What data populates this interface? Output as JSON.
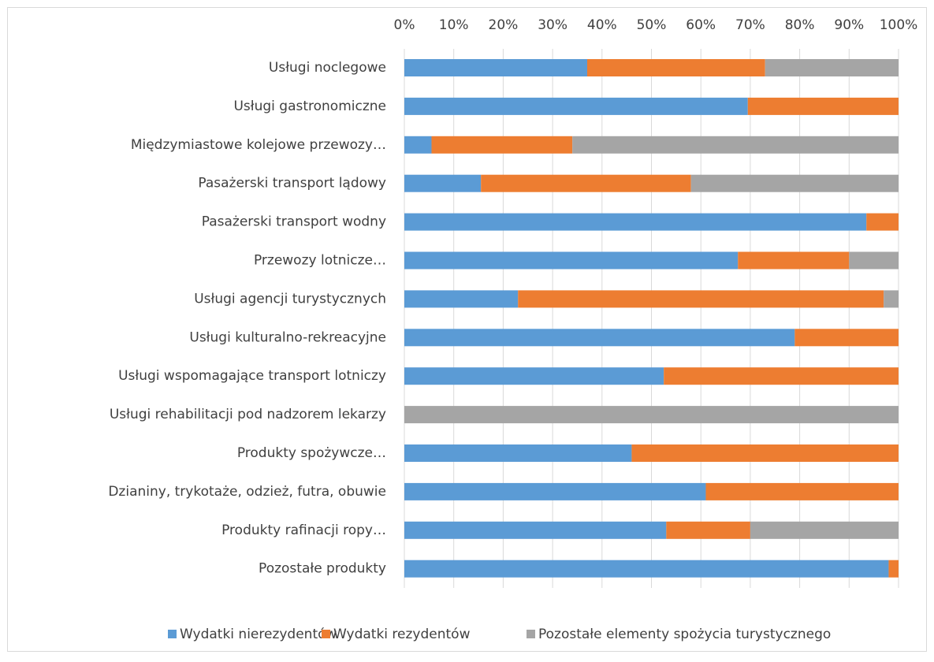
{
  "chart_data": {
    "type": "stacked_barh",
    "categories": [
      "Usługi noclegowe",
      "Usługi gastronomiczne",
      "Międzymiastowe kolejowe przewozy…",
      "Pasażerski transport lądowy",
      "Pasażerski transport wodny",
      "Przewozy lotnicze…",
      "Usługi agencji turystycznych",
      "Usługi kulturalno-rekreacyjne",
      "Usługi wspomagające transport lotniczy",
      "Usługi rehabilitacji pod nadzorem lekarzy",
      "Produkty spożywcze…",
      "Dzianiny, trykotaże, odzież, futra, obuwie",
      "Produkty rafinacji ropy…",
      "Pozostałe produkty"
    ],
    "series": [
      {
        "name": "Wydatki nierezydentów",
        "color": "#5b9bd5",
        "values": [
          37,
          69.5,
          5.5,
          15.5,
          93.5,
          67.5,
          23,
          79,
          52.5,
          0,
          46,
          61,
          53,
          98
        ]
      },
      {
        "name": "Wydatki rezydentów",
        "color": "#ed7d31",
        "values": [
          36,
          30.5,
          28.5,
          42.5,
          6.5,
          22.5,
          74,
          21,
          47.5,
          0,
          54,
          39,
          17,
          2
        ]
      },
      {
        "name": "Pozostałe elementy spożycia turystycznego",
        "color": "#a5a5a5",
        "values": [
          27,
          0,
          66,
          42,
          0,
          10,
          3,
          0,
          0,
          100,
          0,
          0,
          30,
          0
        ]
      }
    ],
    "xlim": [
      0,
      100
    ],
    "xticks": [
      {
        "value": 0,
        "label": "0%"
      },
      {
        "value": 10,
        "label": "10%"
      },
      {
        "value": 20,
        "label": "20%"
      },
      {
        "value": 30,
        "label": "30%"
      },
      {
        "value": 40,
        "label": "40%"
      },
      {
        "value": 50,
        "label": "50%"
      },
      {
        "value": 60,
        "label": "60%"
      },
      {
        "value": 70,
        "label": "70%"
      },
      {
        "value": 80,
        "label": "80%"
      },
      {
        "value": 90,
        "label": "90%"
      },
      {
        "value": 100,
        "label": "100%"
      }
    ],
    "grid": true,
    "legend": "bottom"
  }
}
